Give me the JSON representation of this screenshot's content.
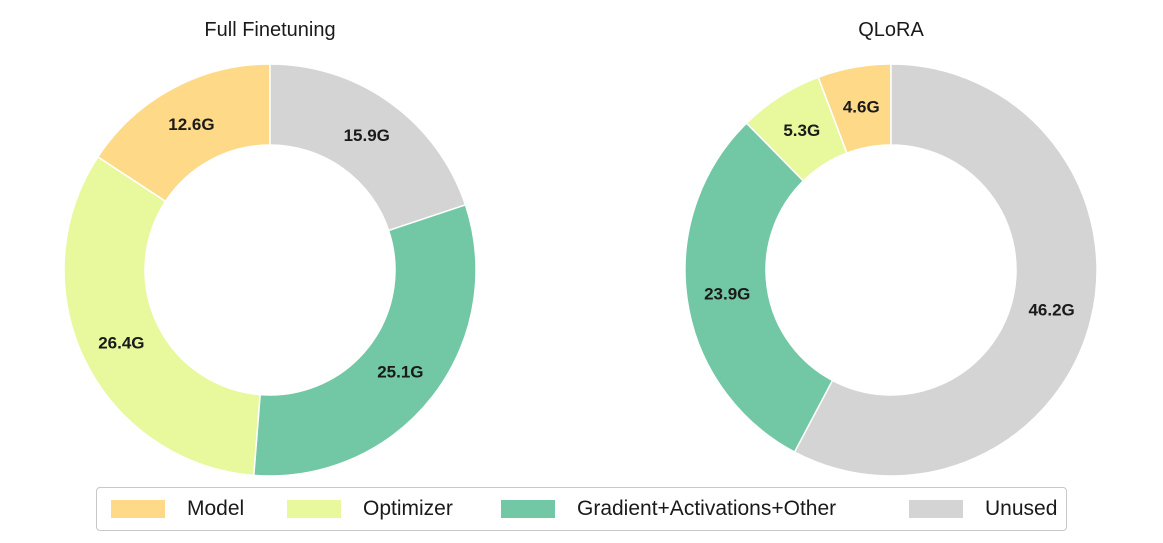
{
  "chart_data": [
    {
      "type": "pie",
      "title": "Full Finetuning",
      "categories": [
        "Model",
        "Optimizer",
        "Gradient+Activations+Other",
        "Unused"
      ],
      "values": [
        12.6,
        26.4,
        25.1,
        15.9
      ],
      "labels": [
        "12.6G",
        "26.4G",
        "25.1G",
        "15.9G"
      ],
      "unit": "G",
      "donut": true,
      "start": "top",
      "direction": "counterclockwise"
    },
    {
      "type": "pie",
      "title": "QLoRA",
      "categories": [
        "Model",
        "Optimizer",
        "Gradient+Activations+Other",
        "Unused"
      ],
      "values": [
        4.6,
        5.3,
        23.9,
        46.2
      ],
      "labels": [
        "4.6G",
        "5.3G",
        "23.9G",
        "46.2G"
      ],
      "unit": "G",
      "donut": true,
      "start": "top",
      "direction": "counterclockwise"
    }
  ],
  "legend": {
    "placement": "bottom",
    "items": [
      {
        "label": "Model",
        "color": "#fed987"
      },
      {
        "label": "Optimizer",
        "color": "#e7f89d"
      },
      {
        "label": "Gradient+Activations+Other",
        "color": "#72c7a5"
      },
      {
        "label": "Unused",
        "color": "#d4d4d4"
      }
    ]
  }
}
